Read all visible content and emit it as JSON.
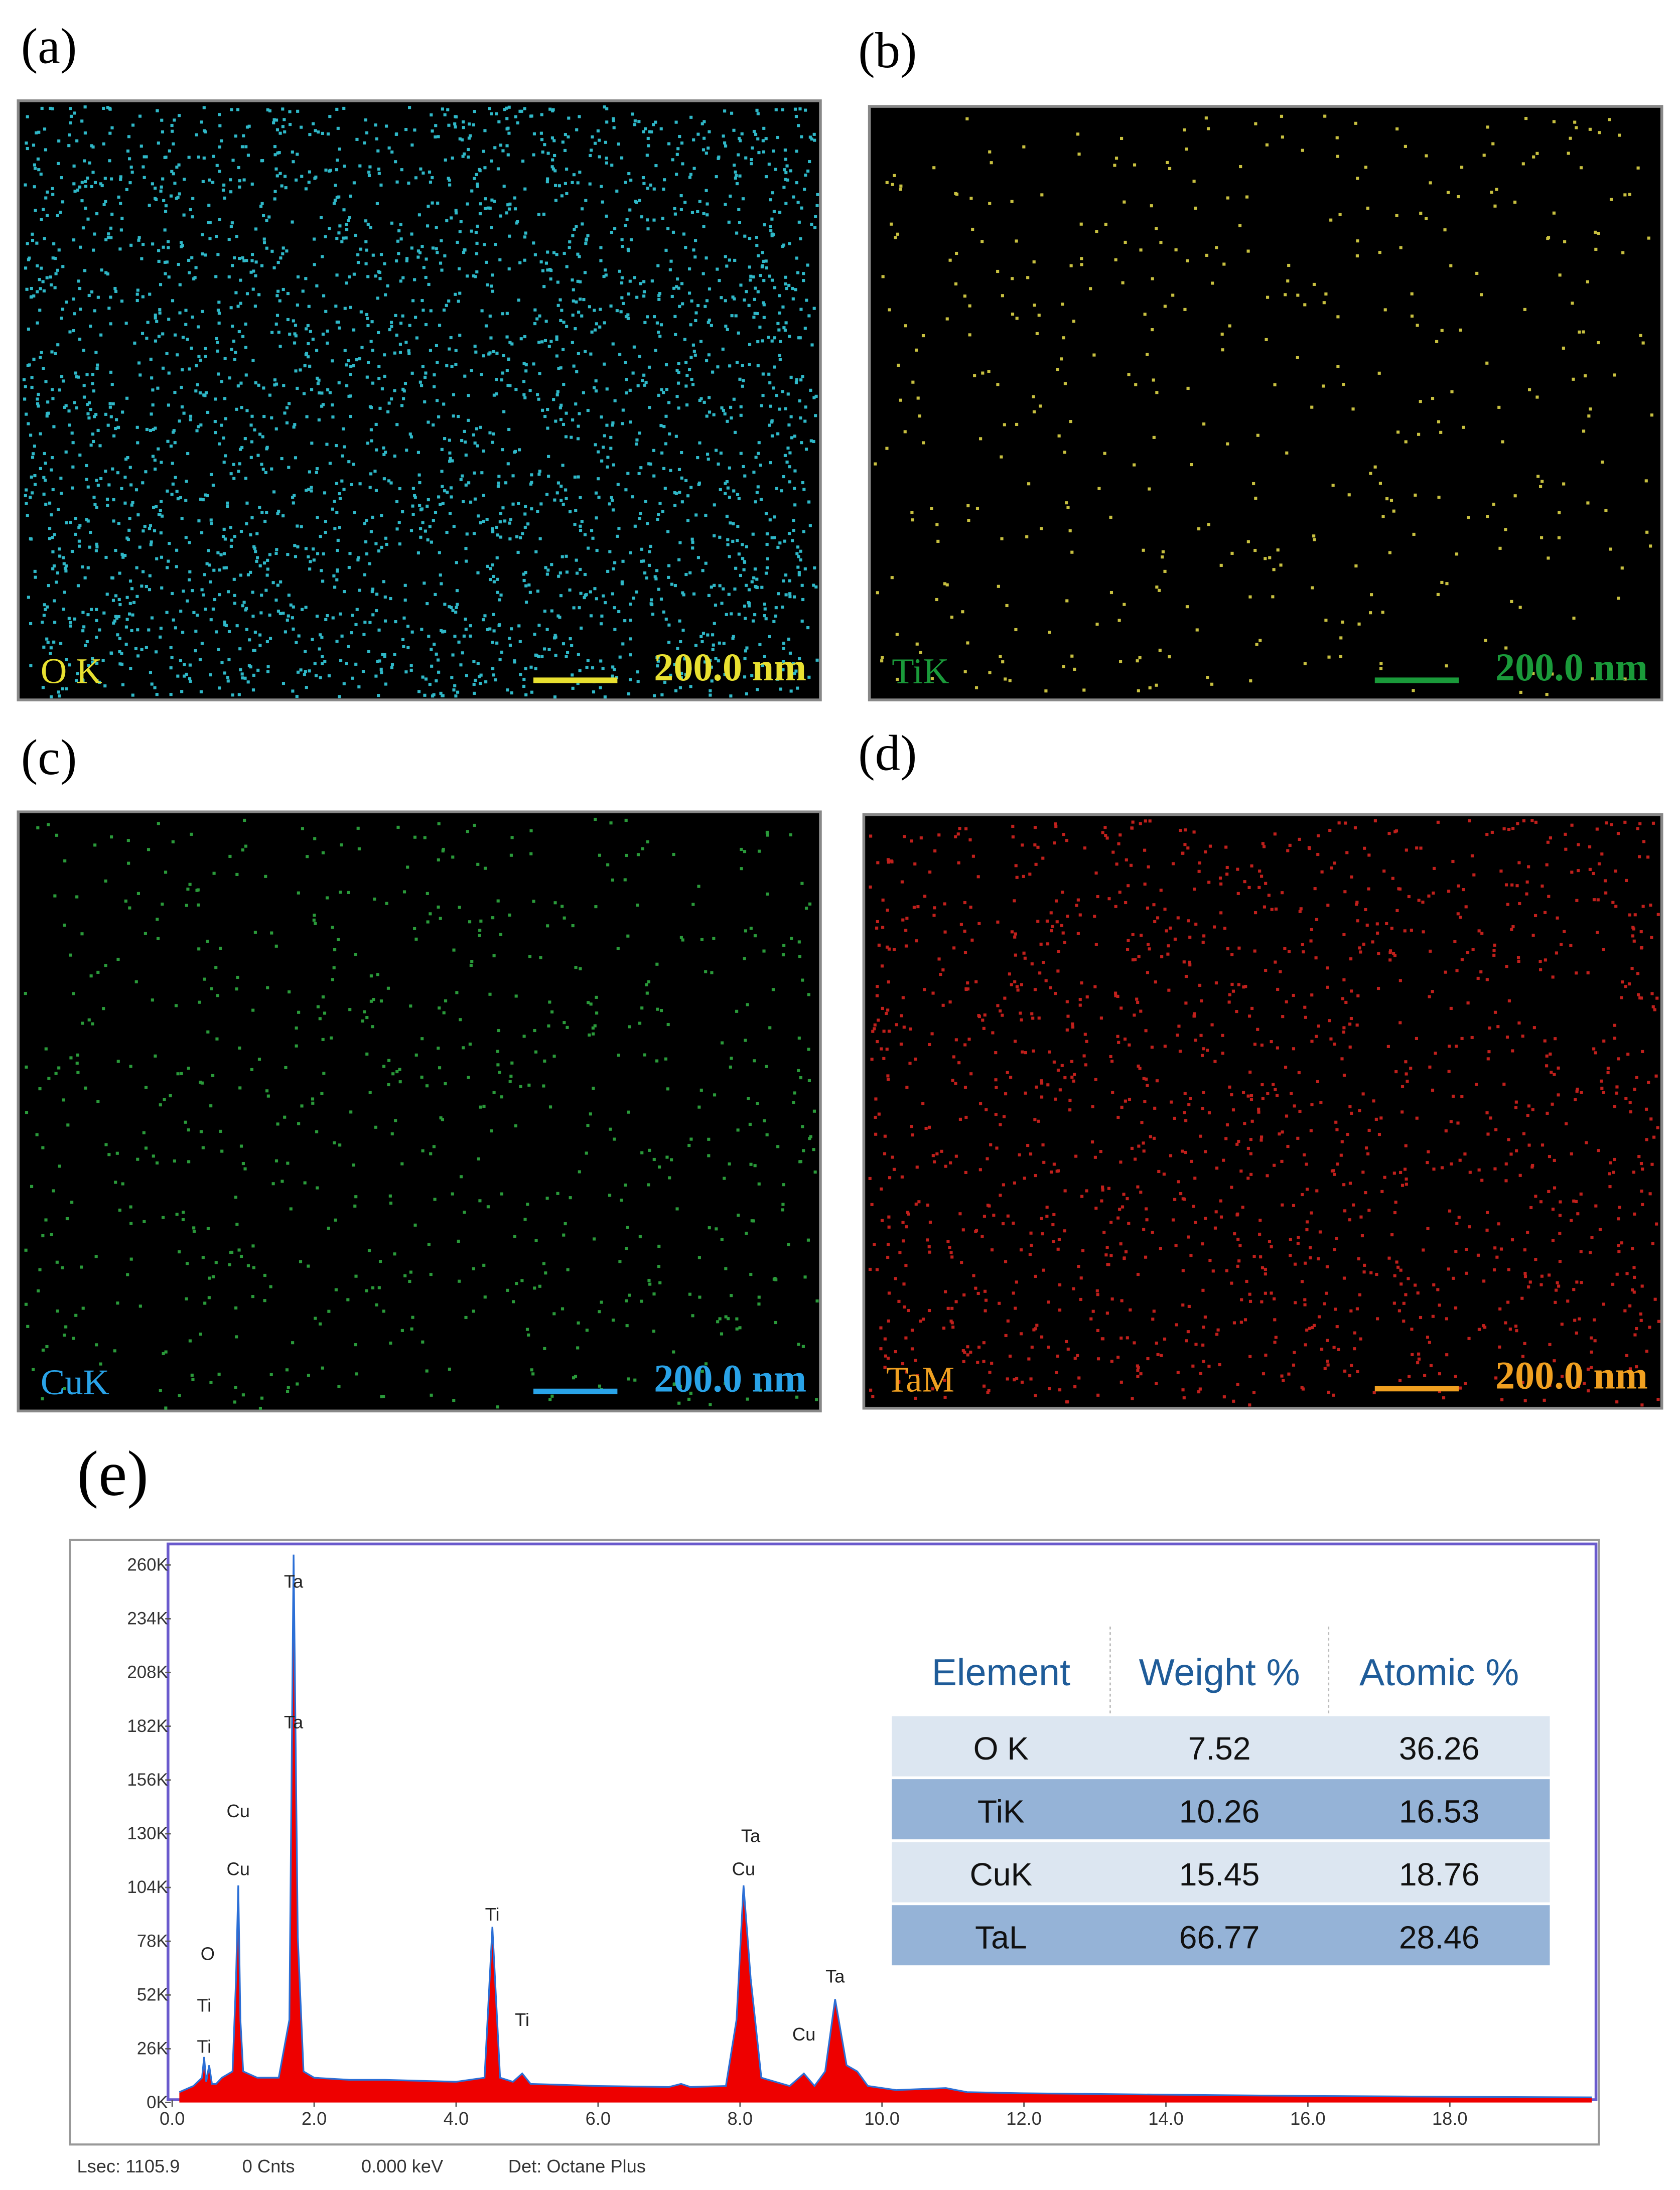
{
  "panels": [
    {
      "label": "(a)",
      "element": "O K",
      "scale": "200.0 nm",
      "dot_color": "#2fb8c8",
      "label_color": "#e8e030"
    },
    {
      "label": "(b)",
      "element": "TiK",
      "scale": "200.0 nm",
      "dot_color": "#c8c040",
      "label_color": "#1a9a3a"
    },
    {
      "label": "(c)",
      "element": "CuK",
      "scale": "200.0 nm",
      "dot_color": "#2a9a3a",
      "label_color": "#29a3e8"
    },
    {
      "label": "(d)",
      "element": "TaM",
      "scale": "200.0 nm",
      "dot_color": "#c0201c",
      "label_color": "#f0a020"
    }
  ],
  "spectrum_label": "(e)",
  "chart_data": {
    "type": "area",
    "x": [
      0.1,
      0.3,
      0.42,
      0.45,
      0.48,
      0.52,
      0.56,
      0.62,
      0.7,
      0.85,
      0.9,
      0.93,
      0.96,
      1.0,
      1.2,
      1.5,
      1.65,
      1.71,
      1.77,
      1.85,
      2.0,
      2.5,
      3.0,
      4.0,
      4.4,
      4.51,
      4.62,
      4.8,
      4.93,
      5.05,
      5.5,
      6.0,
      7.0,
      7.17,
      7.3,
      7.8,
      7.95,
      8.05,
      8.15,
      8.3,
      8.7,
      8.9,
      9.05,
      9.2,
      9.34,
      9.5,
      9.65,
      9.8,
      10.2,
      10.9,
      11.2,
      12,
      14,
      16,
      18,
      20
    ],
    "values": [
      5000,
      8000,
      12000,
      22000,
      10000,
      18000,
      9000,
      9000,
      12000,
      15000,
      60000,
      105000,
      40000,
      15000,
      12000,
      12000,
      40000,
      265000,
      80000,
      15000,
      12000,
      11000,
      11000,
      10000,
      12000,
      85000,
      12000,
      10000,
      14000,
      9000,
      8500,
      8000,
      7500,
      9000,
      7500,
      8000,
      40000,
      105000,
      60000,
      12000,
      8000,
      14000,
      8000,
      15000,
      50000,
      18000,
      15000,
      8000,
      6000,
      7000,
      5000,
      4500,
      3800,
      3200,
      2800,
      2500
    ],
    "color": "#ee0000",
    "line_color": "#2b6fd6",
    "xlim": [
      0,
      20
    ],
    "ylim": [
      0,
      260000
    ],
    "xticks": [
      {
        "value": 0,
        "label": "0.0"
      },
      {
        "value": 2,
        "label": "2.0"
      },
      {
        "value": 4,
        "label": "4.0"
      },
      {
        "value": 6,
        "label": "6.0"
      },
      {
        "value": 8,
        "label": "8.0"
      },
      {
        "value": 10,
        "label": "10.0"
      },
      {
        "value": 12,
        "label": "12.0"
      },
      {
        "value": 14,
        "label": "14.0"
      },
      {
        "value": 16,
        "label": "16.0"
      },
      {
        "value": 18,
        "label": "18.0"
      }
    ],
    "yticks": [
      {
        "value": 0,
        "label": "0K"
      },
      {
        "value": 26000,
        "label": "26K"
      },
      {
        "value": 52000,
        "label": "52K"
      },
      {
        "value": 78000,
        "label": "78K"
      },
      {
        "value": 104000,
        "label": "104K"
      },
      {
        "value": 130000,
        "label": "130K"
      },
      {
        "value": 156000,
        "label": "156K"
      },
      {
        "value": 182000,
        "label": "182K"
      },
      {
        "value": 208000,
        "label": "208K"
      },
      {
        "value": 234000,
        "label": "234K"
      },
      {
        "value": 260000,
        "label": "260K"
      }
    ],
    "annotations": [
      {
        "text": "Ta",
        "x": 1.71,
        "y": 249000
      },
      {
        "text": "Ta",
        "x": 1.71,
        "y": 181000
      },
      {
        "text": "Cu",
        "x": 0.93,
        "y": 138000
      },
      {
        "text": "Cu",
        "x": 0.93,
        "y": 110000
      },
      {
        "text": "O",
        "x": 0.5,
        "y": 69000
      },
      {
        "text": "Ti",
        "x": 0.45,
        "y": 44000
      },
      {
        "text": "Ti",
        "x": 0.45,
        "y": 24000
      },
      {
        "text": "Ti",
        "x": 4.51,
        "y": 88000
      },
      {
        "text": "Ti",
        "x": 4.93,
        "y": 37000
      },
      {
        "text": "Ta",
        "x": 8.15,
        "y": 126000
      },
      {
        "text": "Cu",
        "x": 8.05,
        "y": 110000
      },
      {
        "text": "Cu",
        "x": 8.9,
        "y": 30000
      },
      {
        "text": "Ta",
        "x": 9.34,
        "y": 58000
      }
    ]
  },
  "table": {
    "header": [
      "Element",
      "Weight %",
      "Atomic %"
    ],
    "rows": [
      [
        "O K",
        "7.52",
        "36.26"
      ],
      [
        "TiK",
        "10.26",
        "16.53"
      ],
      [
        "CuK",
        "15.45",
        "18.76"
      ],
      [
        "TaL",
        "66.77",
        "28.46"
      ]
    ]
  },
  "footer": [
    "Lsec: 1105.9",
    "0 Cnts",
    "0.000 keV",
    "Det: Octane Plus"
  ]
}
